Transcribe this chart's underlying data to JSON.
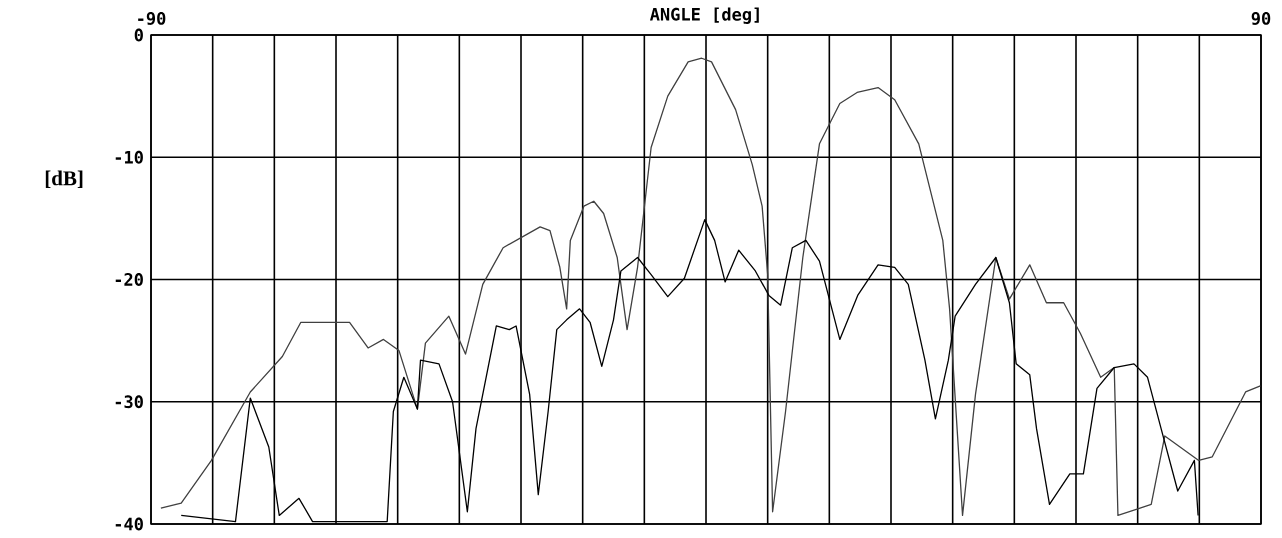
{
  "chart_data": {
    "type": "line",
    "xlabel": "ANGLE [deg]",
    "ylabel": "[dB]",
    "xlim": [
      -90,
      90
    ],
    "ylim": [
      -40,
      0
    ],
    "xticks": [
      -90,
      {
        "value": -80,
        "label": null
      },
      {
        "value": -70,
        "label": null
      },
      {
        "value": -60,
        "label": null
      },
      {
        "value": -50,
        "label": null
      },
      {
        "value": -40,
        "label": null
      },
      {
        "value": -30,
        "label": null
      },
      {
        "value": -20,
        "label": null
      },
      {
        "value": -10,
        "label": null
      },
      {
        "value": 0,
        "label": null
      },
      {
        "value": 10,
        "label": null
      },
      {
        "value": 20,
        "label": null
      },
      {
        "value": 30,
        "label": null
      },
      {
        "value": 40,
        "label": null
      },
      {
        "value": 50,
        "label": null
      },
      {
        "value": 60,
        "label": null
      },
      {
        "value": 70,
        "label": null
      },
      {
        "value": 80,
        "label": null
      },
      90
    ],
    "yticks": [
      0,
      -10,
      -20,
      -30,
      -40
    ],
    "grid": true,
    "marker": "none",
    "line_style": "solid",
    "series": [
      {
        "color": "#404040",
        "x": [
          -88.4,
          -85.1,
          -80.2,
          -73.9,
          -68.7,
          -65.7,
          -57.8,
          -54.8,
          -52.3,
          -49.8,
          -46.8,
          -45.5,
          -41.7,
          -39.0,
          -36.2,
          -32.9,
          -26.9,
          -25.3,
          -23.7,
          -22.6,
          -22.0,
          -19.8,
          -18.2,
          -16.6,
          -14.4,
          -12.8,
          -11.1,
          -8.9,
          -6.2,
          -2.9,
          -0.7,
          0.9,
          4.8,
          7.5,
          9.1,
          10.0,
          10.8,
          12.9,
          15.7,
          18.4,
          21.7,
          24.5,
          27.9,
          30.6,
          34.5,
          38.4,
          39.5,
          41.6,
          43.7,
          47.0,
          49.2,
          52.5,
          55.2,
          58.0,
          60.7,
          64.0,
          66.2,
          66.8,
          72.2,
          74.4,
          79.9,
          82.1,
          87.5,
          89.9
        ],
        "values": [
          -38.7,
          -38.3,
          -34.8,
          -29.2,
          -26.3,
          -23.5,
          -23.5,
          -25.6,
          -24.9,
          -25.8,
          -30.6,
          -25.2,
          -23.0,
          -26.1,
          -20.4,
          -17.4,
          -15.7,
          -16.0,
          -19.0,
          -22.4,
          -16.8,
          -14.0,
          -13.6,
          -14.6,
          -18.2,
          -24.1,
          -19.0,
          -9.2,
          -5.0,
          -2.2,
          -1.9,
          -2.2,
          -6.1,
          -10.6,
          -14.0,
          -19.6,
          -39.0,
          -30.8,
          -18.2,
          -8.9,
          -5.6,
          -4.7,
          -4.3,
          -5.3,
          -8.9,
          -16.8,
          -22.4,
          -39.3,
          -29.4,
          -18.2,
          -21.6,
          -18.8,
          -21.9,
          -21.9,
          -24.4,
          -28.0,
          -27.2,
          -39.3,
          -38.4,
          -32.8,
          -34.8,
          -34.5,
          -29.2,
          -28.7
        ]
      },
      {
        "color": "#000000",
        "x": [
          -85.1,
          -76.3,
          -73.9,
          -70.9,
          -69.2,
          -66.0,
          -63.8,
          -51.7,
          -50.7,
          -49.0,
          -46.8,
          -46.3,
          -43.3,
          -41.1,
          -38.7,
          -37.3,
          -34.0,
          -31.9,
          -30.8,
          -28.6,
          -27.2,
          -25.6,
          -24.2,
          -22.6,
          -20.5,
          -18.8,
          -16.9,
          -15.0,
          -13.8,
          -11.1,
          -8.9,
          -6.2,
          -3.5,
          -0.2,
          1.4,
          3.1,
          5.3,
          8.0,
          10.2,
          12.1,
          14.0,
          16.2,
          18.4,
          21.7,
          24.6,
          27.9,
          30.6,
          32.8,
          35.5,
          37.2,
          39.3,
          40.4,
          43.7,
          47.0,
          49.2,
          50.3,
          52.5,
          53.6,
          55.7,
          59.0,
          61.2,
          63.4,
          66.2,
          69.4,
          71.6,
          73.8,
          76.5,
          79.2,
          79.8
        ],
        "values": [
          -39.3,
          -39.8,
          -29.7,
          -33.7,
          -39.3,
          -37.9,
          -39.8,
          -39.8,
          -30.8,
          -28.0,
          -30.6,
          -26.6,
          -26.9,
          -30.0,
          -39.0,
          -32.2,
          -23.8,
          -24.1,
          -23.8,
          -29.4,
          -37.6,
          -30.8,
          -24.1,
          -23.3,
          -22.4,
          -23.5,
          -27.1,
          -23.3,
          -19.3,
          -18.2,
          -19.6,
          -21.4,
          -19.9,
          -15.1,
          -16.8,
          -20.2,
          -17.6,
          -19.3,
          -21.3,
          -22.1,
          -17.4,
          -16.8,
          -18.5,
          -24.9,
          -21.3,
          -18.8,
          -19.0,
          -20.4,
          -26.6,
          -31.4,
          -26.6,
          -23.0,
          -20.4,
          -18.2,
          -21.9,
          -26.9,
          -27.8,
          -32.2,
          -38.4,
          -35.9,
          -35.9,
          -28.9,
          -27.2,
          -26.9,
          -28.0,
          -32.2,
          -37.3,
          -34.8,
          -39.3
        ]
      }
    ]
  }
}
